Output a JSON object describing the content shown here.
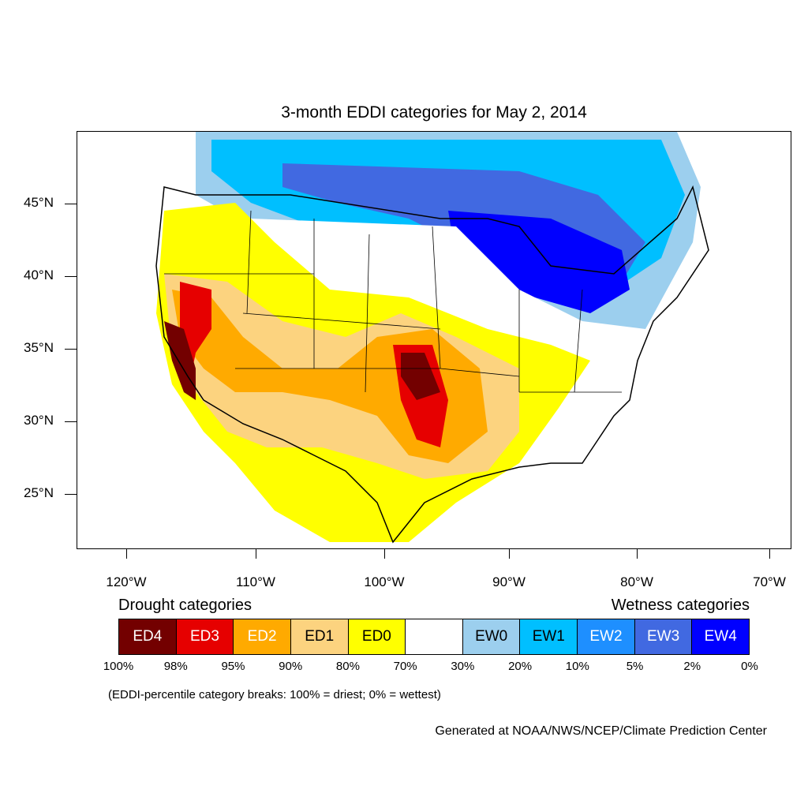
{
  "title": "3-month EDDI categories for May 2, 2014",
  "lat_labels": [
    "45°N",
    "40°N",
    "35°N",
    "30°N",
    "25°N"
  ],
  "lon_labels": [
    "120°W",
    "110°W",
    "100°W",
    "90°W",
    "80°W",
    "70°W"
  ],
  "legend": {
    "drought_heading": "Drought categories",
    "wetness_heading": "Wetness categories",
    "categories": [
      {
        "label": "ED4",
        "color": "#730000",
        "text_color": "#ffffff"
      },
      {
        "label": "ED3",
        "color": "#e60000",
        "text_color": "#ffffff"
      },
      {
        "label": "ED2",
        "color": "#ffaa00",
        "text_color": "#ffffff"
      },
      {
        "label": "ED1",
        "color": "#fcd37f",
        "text_color": "#000000"
      },
      {
        "label": "ED0",
        "color": "#ffff00",
        "text_color": "#000000"
      },
      {
        "label": "",
        "color": "#ffffff",
        "text_color": "#000000"
      },
      {
        "label": "EW0",
        "color": "#9ccfee",
        "text_color": "#000000"
      },
      {
        "label": "EW1",
        "color": "#00bfff",
        "text_color": "#000000"
      },
      {
        "label": "EW2",
        "color": "#1e8fff",
        "text_color": "#ffffff"
      },
      {
        "label": "EW3",
        "color": "#4169e1",
        "text_color": "#ffffff"
      },
      {
        "label": "EW4",
        "color": "#0000ff",
        "text_color": "#ffffff"
      }
    ],
    "breaks": [
      "100%",
      "98%",
      "95%",
      "90%",
      "80%",
      "70%",
      "30%",
      "20%",
      "10%",
      "5%",
      "2%",
      "0%"
    ]
  },
  "note": "(EDDI-percentile category breaks: 100% = driest; 0% = wettest)",
  "credit": "Generated at NOAA/NWS/NCEP/Climate Prediction Center"
}
